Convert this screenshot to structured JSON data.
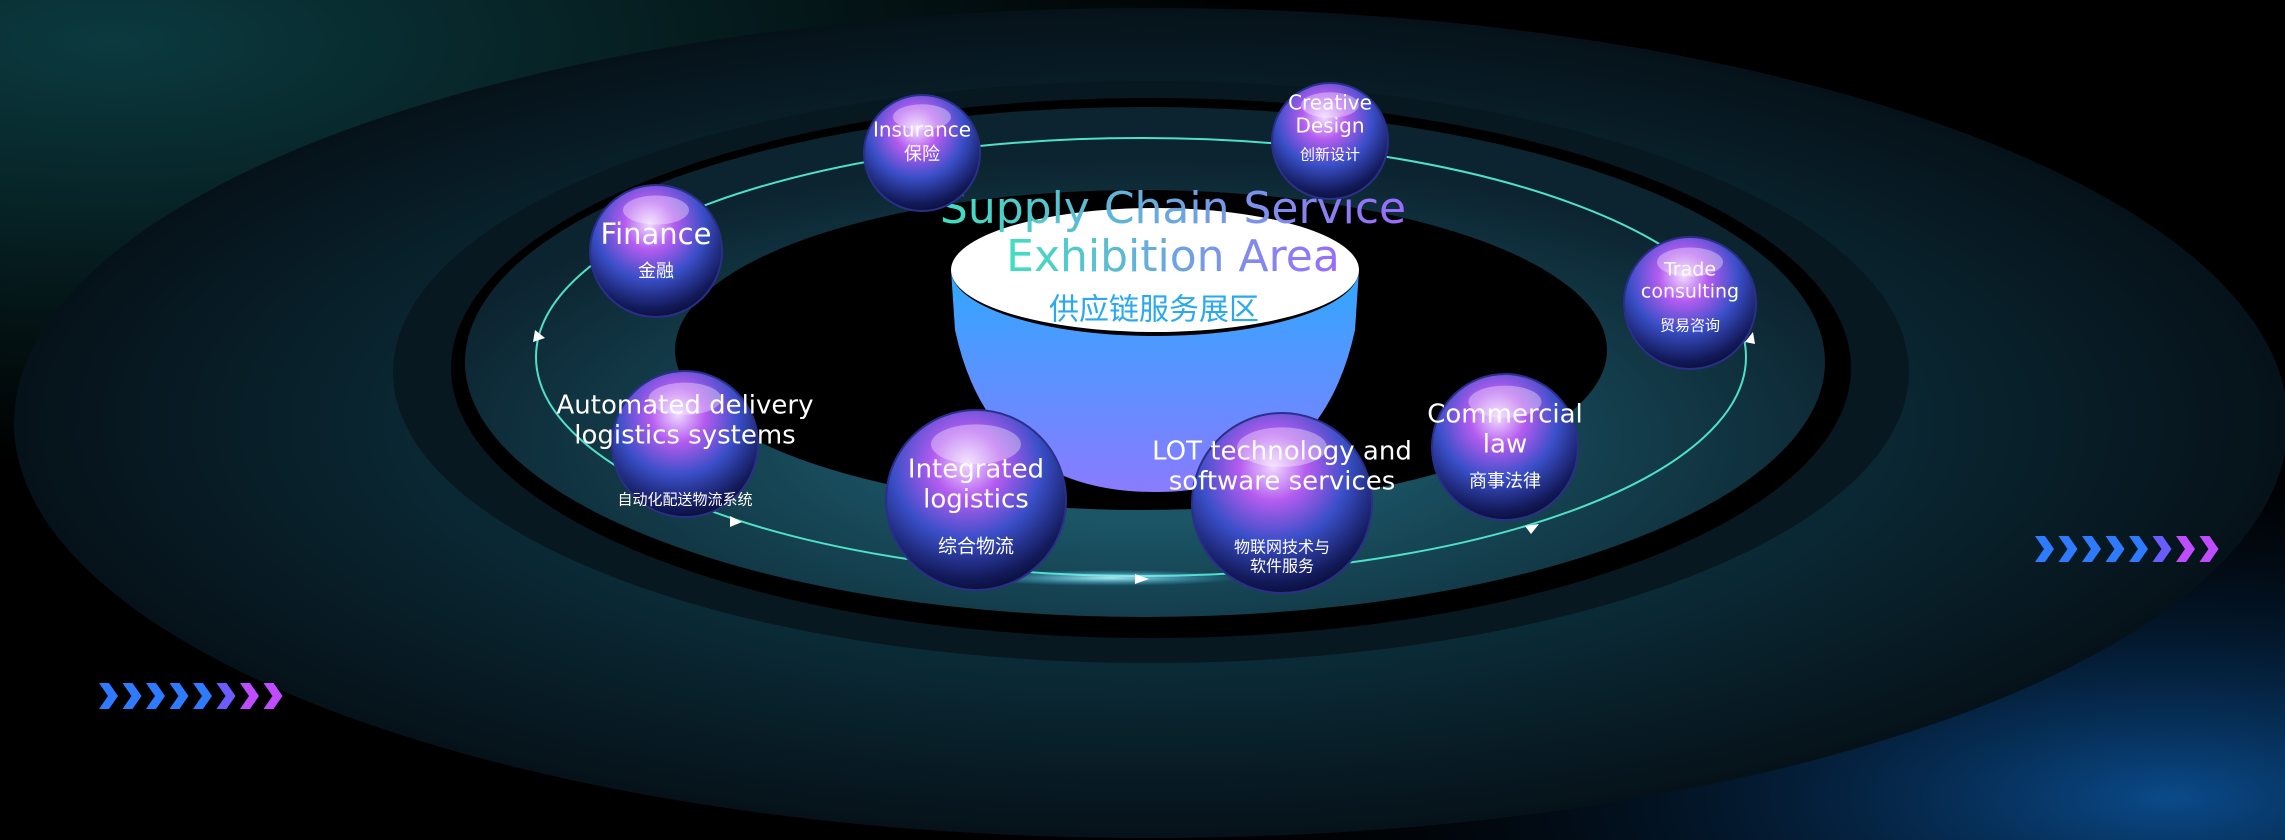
{
  "title": {
    "lines": [
      "Supply Chain Service",
      "Exhibition Area"
    ],
    "subtitle": "供应链服务展区"
  },
  "nodes": [
    {
      "en": [
        "Insurance"
      ],
      "zh": [
        "保险"
      ]
    },
    {
      "en": [
        "Creative",
        "Design"
      ],
      "zh": [
        "创新设计"
      ]
    },
    {
      "en": [
        "Finance"
      ],
      "zh": [
        "金融"
      ]
    },
    {
      "en": [
        "Trade",
        "consulting"
      ],
      "zh": [
        "贸易咨询"
      ]
    },
    {
      "en": [
        "Automated delivery",
        "logistics systems"
      ],
      "zh": [
        "自动化配送物流系统"
      ]
    },
    {
      "en": [
        "Integrated",
        "logistics"
      ],
      "zh": [
        "综合物流"
      ]
    },
    {
      "en": [
        "LOT technology and",
        "software services"
      ],
      "zh": [
        "物联网技术与",
        "软件服务"
      ]
    },
    {
      "en": [
        "Commercial",
        "law"
      ],
      "zh": [
        "商事法律"
      ]
    }
  ]
}
